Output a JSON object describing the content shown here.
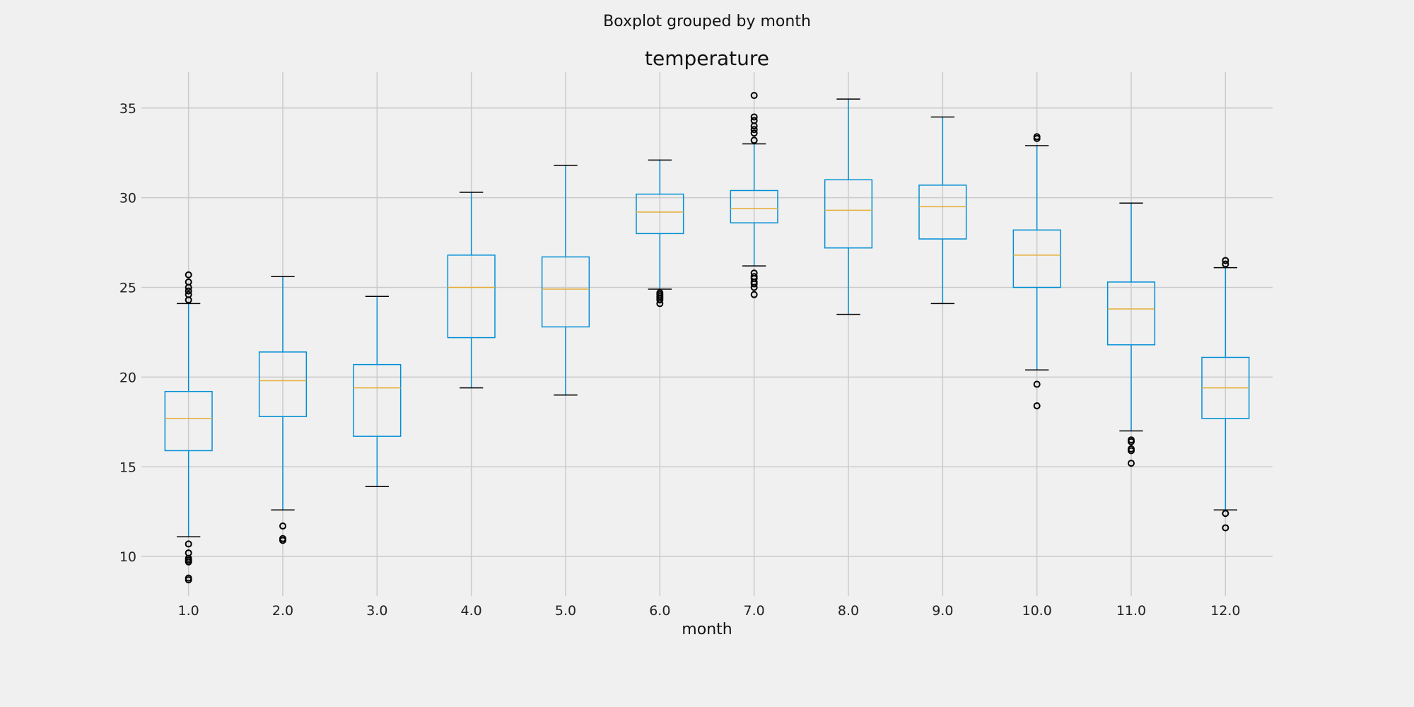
{
  "chart_data": {
    "type": "boxplot",
    "suptitle": "Boxplot grouped by month",
    "title": "temperature",
    "xlabel": "month",
    "ylabel": "",
    "categories": [
      "1.0",
      "2.0",
      "3.0",
      "4.0",
      "5.0",
      "6.0",
      "7.0",
      "8.0",
      "9.0",
      "10.0",
      "11.0",
      "12.0"
    ],
    "yticks": [
      10,
      15,
      20,
      25,
      30,
      35
    ],
    "ylim": [
      7.8,
      37.0
    ],
    "grid": true,
    "colors": {
      "background": "#f0f0f0",
      "grid": "#cbcbcb",
      "box": "#008fd5",
      "median": "#e5ae38",
      "cap": "#000000",
      "flier": "#000000"
    },
    "boxes": [
      {
        "category": "1.0",
        "whislo": 11.1,
        "q1": 15.9,
        "med": 17.7,
        "q3": 19.2,
        "whishi": 24.1,
        "fliers": [
          8.7,
          8.8,
          9.7,
          9.8,
          9.9,
          10.2,
          10.7,
          24.3,
          24.6,
          24.8,
          25.0,
          25.3,
          25.7
        ]
      },
      {
        "category": "2.0",
        "whislo": 12.6,
        "q1": 17.8,
        "med": 19.8,
        "q3": 21.4,
        "whishi": 25.6,
        "fliers": [
          10.9,
          11.0,
          11.7
        ]
      },
      {
        "category": "3.0",
        "whislo": 13.9,
        "q1": 16.7,
        "med": 19.4,
        "q3": 20.7,
        "whishi": 24.5,
        "fliers": []
      },
      {
        "category": "4.0",
        "whislo": 19.4,
        "q1": 22.2,
        "med": 25.0,
        "q3": 26.8,
        "whishi": 30.3,
        "fliers": []
      },
      {
        "category": "5.0",
        "whislo": 19.0,
        "q1": 22.8,
        "med": 24.9,
        "q3": 26.7,
        "whishi": 31.8,
        "fliers": []
      },
      {
        "category": "6.0",
        "whislo": 24.9,
        "q1": 28.0,
        "med": 29.2,
        "q3": 30.2,
        "whishi": 32.1,
        "fliers": [
          24.1,
          24.3,
          24.4,
          24.5,
          24.6,
          24.7
        ]
      },
      {
        "category": "7.0",
        "whislo": 26.2,
        "q1": 28.6,
        "med": 29.4,
        "q3": 30.4,
        "whishi": 33.0,
        "fliers": [
          24.6,
          25.0,
          25.2,
          25.3,
          25.5,
          25.6,
          25.8,
          33.2,
          33.6,
          33.8,
          34.0,
          34.3,
          34.5,
          35.7
        ]
      },
      {
        "category": "8.0",
        "whislo": 23.5,
        "q1": 27.2,
        "med": 29.3,
        "q3": 31.0,
        "whishi": 35.5,
        "fliers": []
      },
      {
        "category": "9.0",
        "whislo": 24.1,
        "q1": 27.7,
        "med": 29.5,
        "q3": 30.7,
        "whishi": 34.5,
        "fliers": []
      },
      {
        "category": "10.0",
        "whislo": 20.4,
        "q1": 25.0,
        "med": 26.8,
        "q3": 28.2,
        "whishi": 32.9,
        "fliers": [
          18.4,
          19.6,
          33.3,
          33.4
        ]
      },
      {
        "category": "11.0",
        "whislo": 17.0,
        "q1": 21.8,
        "med": 23.8,
        "q3": 25.3,
        "whishi": 29.7,
        "fliers": [
          15.2,
          15.9,
          16.0,
          16.4,
          16.5
        ]
      },
      {
        "category": "12.0",
        "whislo": 12.6,
        "q1": 17.7,
        "med": 19.4,
        "q3": 21.1,
        "whishi": 26.1,
        "fliers": [
          11.6,
          12.4,
          26.3,
          26.5
        ]
      }
    ]
  }
}
